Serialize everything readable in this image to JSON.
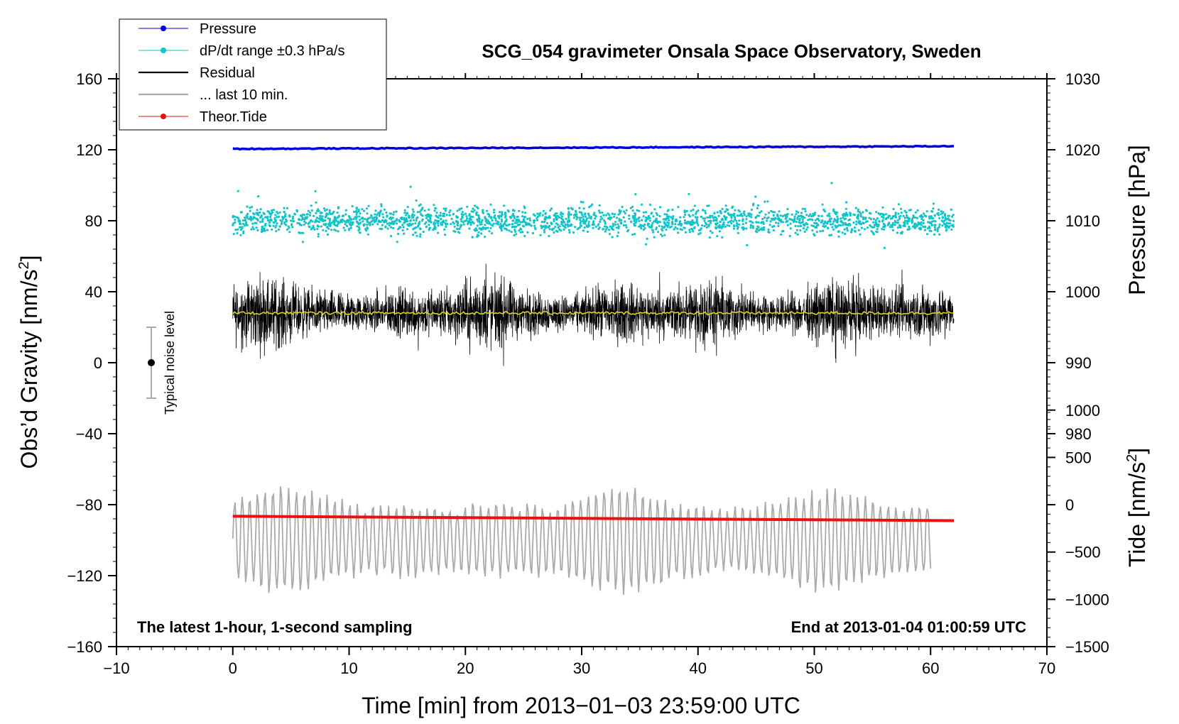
{
  "chart_data": {
    "type": "line",
    "title": "SCG_054 gravimeter Onsala Space Observatory, Sweden",
    "xlabel": "Time [min] from 2013−01−03 23:59:00 UTC",
    "ylabel_left": "Obs’d Gravity [nm/s",
    "ylabel_left_sup": "2",
    "ylabel_left_close": "]",
    "ylabel_right_top": "Pressure [hPa]",
    "ylabel_right_bottom": "Tide [nm/s",
    "ylabel_right_bottom_sup": "2",
    "ylabel_right_bottom_close": "]",
    "xlim": [
      -10,
      70
    ],
    "ylim_left": [
      -160,
      160
    ],
    "x_ticks": [
      -10,
      0,
      10,
      20,
      30,
      40,
      50,
      60,
      70
    ],
    "x_tick_labels": [
      "−10",
      "0",
      "10",
      "20",
      "30",
      "40",
      "50",
      "60",
      "70"
    ],
    "y_left_ticks": [
      160,
      120,
      80,
      40,
      0,
      -40,
      -80,
      -120,
      -160
    ],
    "y_left_tick_labels": [
      "160",
      "120",
      "80",
      "40",
      "0",
      "−40",
      "−80",
      "−120",
      "−160"
    ],
    "pressure_axis": {
      "ticks": [
        1030,
        1020,
        1010,
        1000,
        990,
        980
      ],
      "tick_labels": [
        "1030",
        "1020",
        "1010",
        "1000",
        "990",
        "980"
      ],
      "gravity_equiv_top": 160,
      "gravity_per_hPa": 4
    },
    "tide_axis": {
      "ticks": [
        1000,
        500,
        0,
        -500,
        -1000,
        -1500
      ],
      "tick_labels": [
        "1000",
        "500",
        "0",
        "−500",
        "−1000",
        "−1500"
      ],
      "gravity_equiv_top": -26.7,
      "gravity_per_unit": 0.05333
    },
    "legend": [
      {
        "label": "Pressure",
        "color": "#0000dd",
        "marker": true
      },
      {
        "label": "dP/dt range ±0.3 hPa/s",
        "color": "#11c4c8",
        "marker": true
      },
      {
        "label": "Residual",
        "color": "#000000",
        "marker": false
      },
      {
        "label": "... last 10 min.",
        "color": "#aaaaaa",
        "marker": false
      },
      {
        "label": "Theor.Tide",
        "color": "#e81010",
        "marker": true
      }
    ],
    "series": [
      {
        "name": "Pressure",
        "x_range": [
          0,
          62
        ],
        "y_start": 120.5,
        "y_end": 122,
        "color": "#0000dd"
      },
      {
        "name": "dP/dt range ±0.3 hPa/s",
        "x_range": [
          0,
          62
        ],
        "y_center": 80,
        "spread": 20,
        "color": "#11c4c8"
      },
      {
        "name": "Residual",
        "x_range": [
          0,
          62
        ],
        "y_center": 28,
        "min": -17,
        "max": 73,
        "color": "#000000"
      },
      {
        "name": "Residual mean",
        "x_range": [
          0,
          62
        ],
        "y": 28,
        "color": "#d8d820"
      },
      {
        "name": "... last 10 min.",
        "x_range": [
          0,
          60
        ],
        "y_center": -100,
        "min": -143,
        "max": -67,
        "color": "#aaaaaa"
      },
      {
        "name": "Theor.Tide",
        "x_range": [
          0,
          62
        ],
        "y_start": -86.5,
        "y_end": -89,
        "color": "#e81010"
      }
    ],
    "noise_bar": {
      "x": -7,
      "y": 0,
      "half_range": 20,
      "label": "Typical noise level"
    },
    "annotations": {
      "bottom_left": "The latest 1-hour, 1-second sampling",
      "bottom_right": "End at 2013-01-04 01:00:59 UTC"
    }
  },
  "colors": {
    "pressure": "#0000dd",
    "dpdt": "#11c4c8",
    "residual": "#000000",
    "mean": "#d8d820",
    "last10": "#aaaaaa",
    "tide": "#e81010"
  }
}
